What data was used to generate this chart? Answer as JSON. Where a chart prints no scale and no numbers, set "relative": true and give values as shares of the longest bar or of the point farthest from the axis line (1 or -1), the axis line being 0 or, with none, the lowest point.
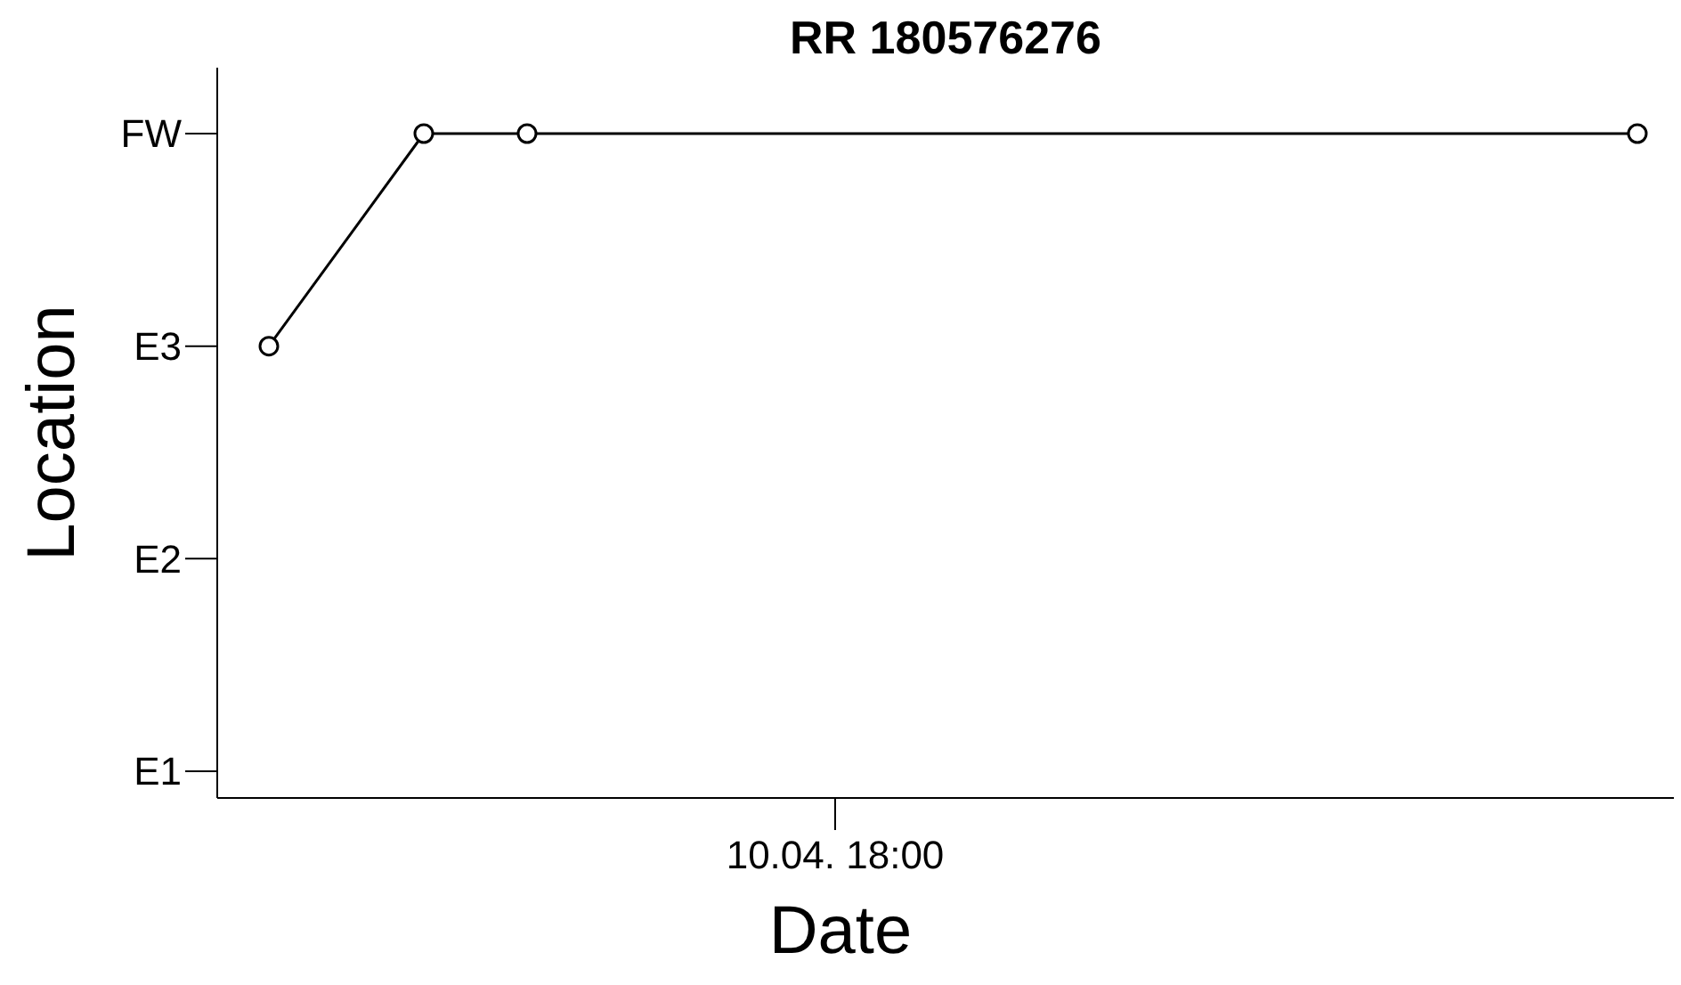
{
  "chart_data": {
    "type": "line",
    "title": "RR 180576276",
    "xlabel": "Date",
    "ylabel": "Location",
    "relative": true,
    "categories": [
      null,
      null,
      null,
      null,
      null,
      null,
      null,
      null,
      null,
      null,
      null,
      null,
      null,
      null,
      null,
      null,
      null,
      null,
      null,
      null,
      null,
      null,
      null,
      null,
      null,
      null,
      null,
      null,
      null,
      null,
      null,
      null,
      null,
      null,
      null,
      null,
      null,
      null,
      null,
      null,
      null,
      null,
      null,
      null,
      null,
      null,
      null,
      null,
      null,
      null,
      null,
      null,
      null,
      null,
      null,
      null,
      null
    ],
    "series": [
      {
        "color": "#000000",
        "values": [
          null,
          null,
          0.68,
          null,
          null,
          null,
          null,
          null,
          1,
          null,
          null,
          null,
          1,
          null,
          null,
          null,
          null,
          null,
          null,
          null,
          null,
          null,
          null,
          null,
          null,
          null,
          null,
          null,
          null,
          null,
          null,
          null,
          null,
          null,
          null,
          null,
          null,
          null,
          null,
          null,
          null,
          null,
          null,
          null,
          null,
          null,
          null,
          null,
          null,
          null,
          null,
          null,
          null,
          null,
          null,
          1,
          null
        ]
      }
    ],
    "annotations": [
      "E1",
      "E2",
      "E3",
      "FW",
      "10.04. 18:00"
    ],
    "marker": "circle",
    "line_style": "solid"
  }
}
